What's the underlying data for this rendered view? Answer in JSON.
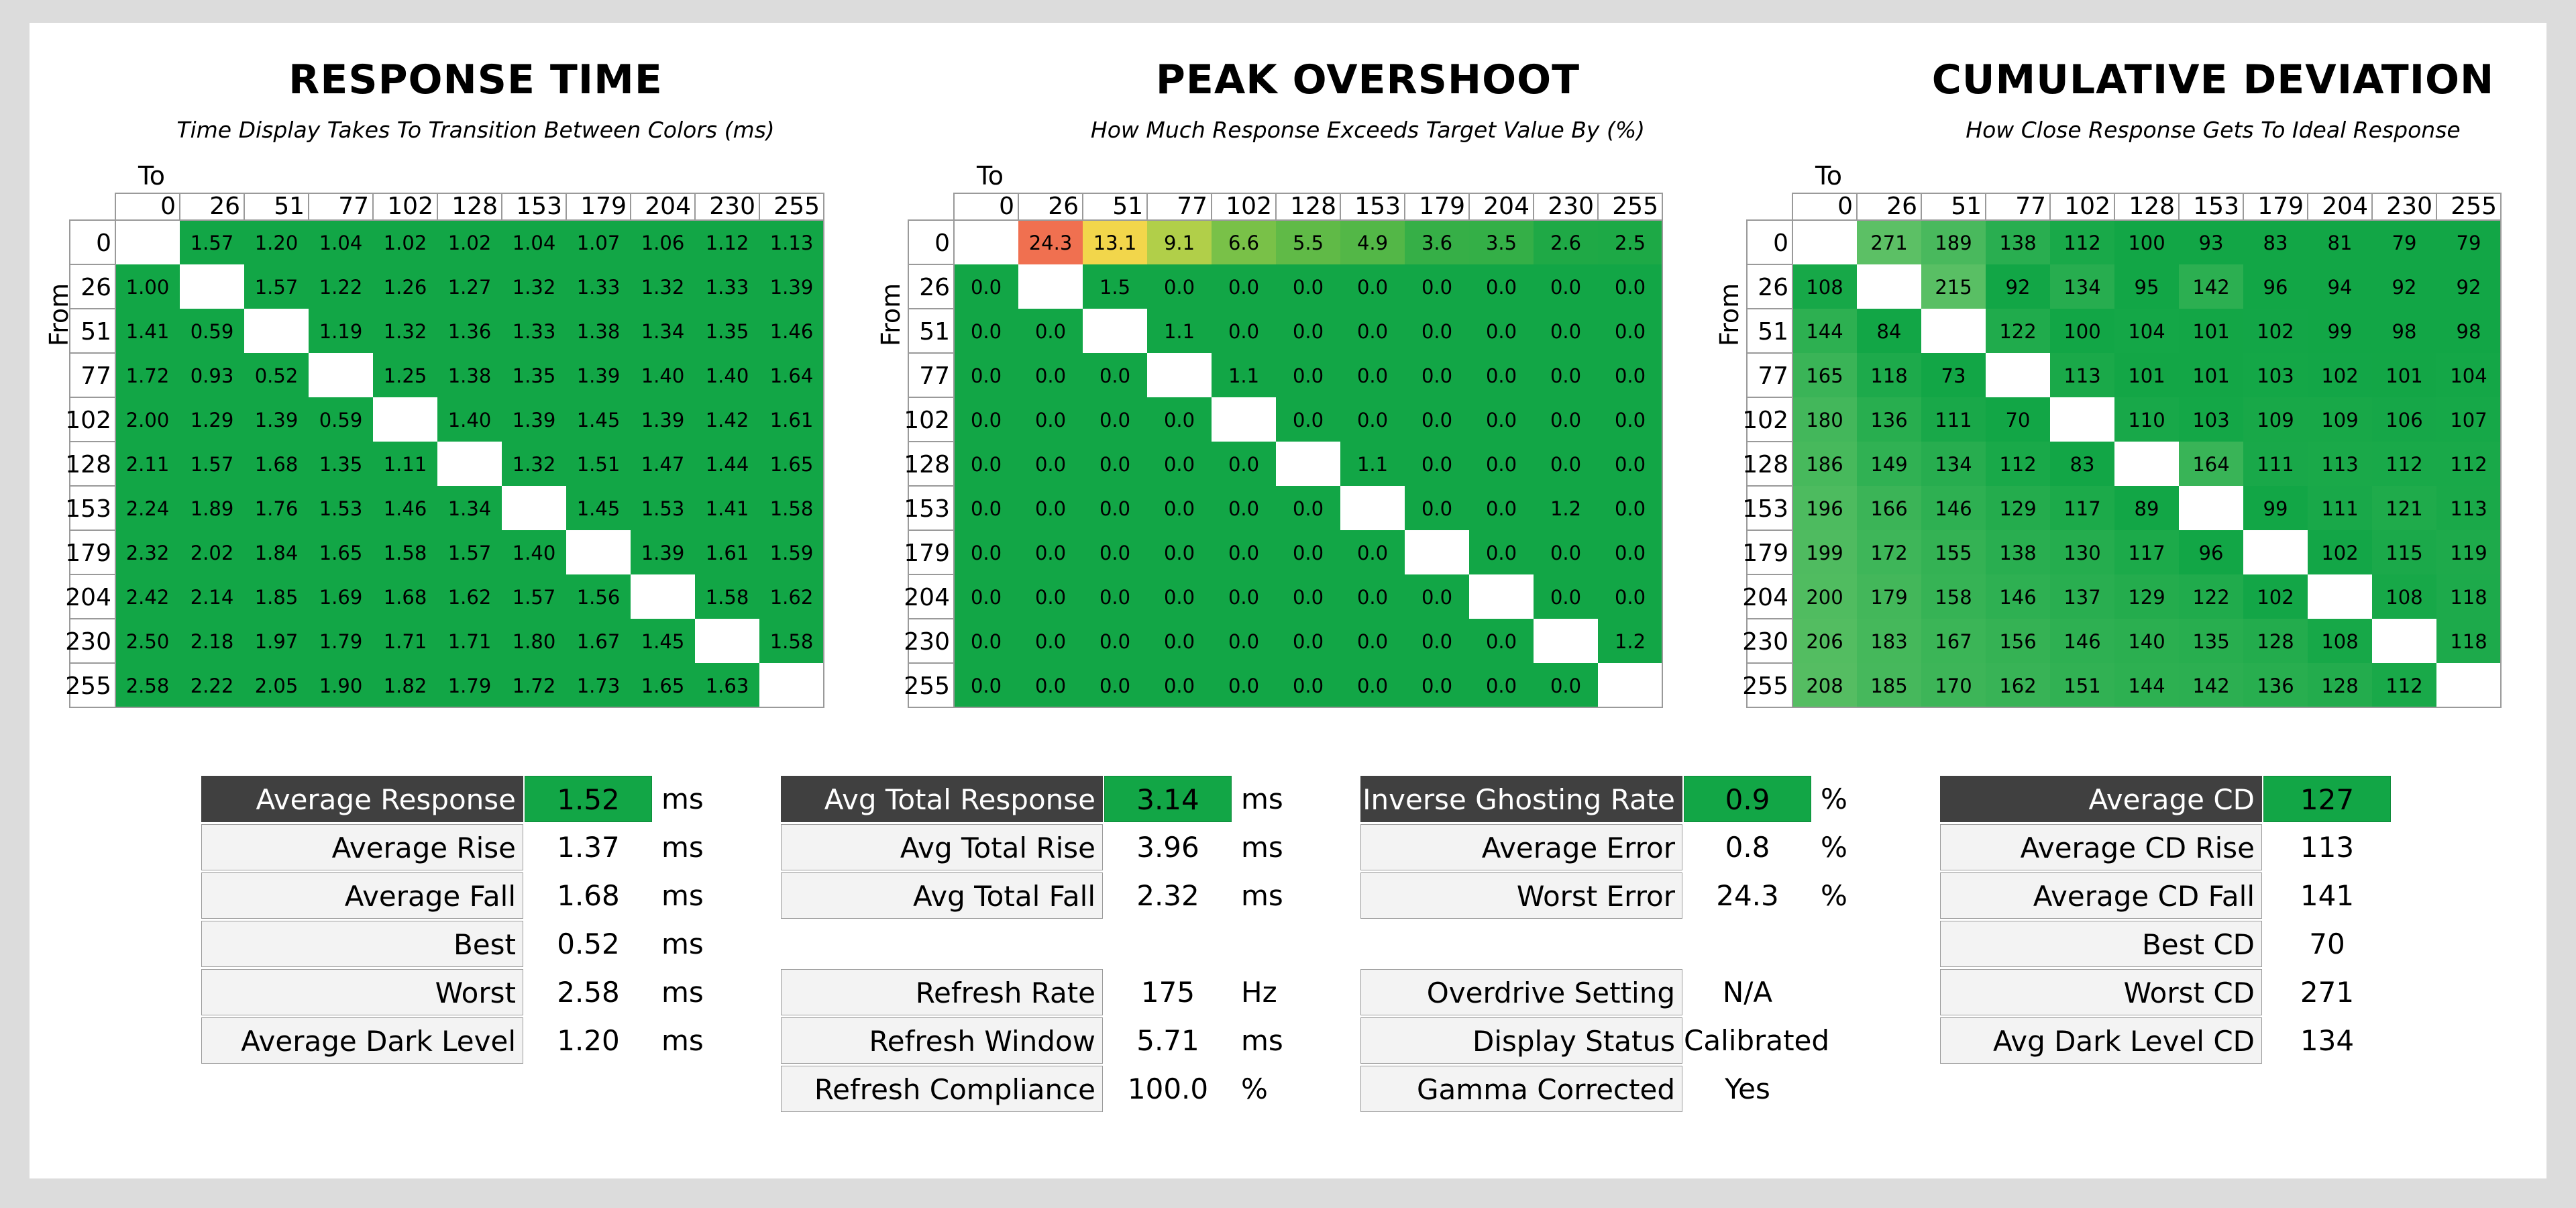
{
  "charts": [
    {
      "title": "RESPONSE TIME",
      "subtitle": "Time Display Takes To Transition Between Colors (ms)",
      "axis_to": "To",
      "axis_from": "From",
      "stats": [
        {
          "label": "Average Response",
          "value": "1.52",
          "unit": "ms",
          "highlight": true
        },
        {
          "label": "Average Rise",
          "value": "1.37",
          "unit": "ms"
        },
        {
          "label": "Average Fall",
          "value": "1.68",
          "unit": "ms"
        },
        {
          "label": "Best",
          "value": "0.52",
          "unit": "ms"
        },
        {
          "label": "Worst",
          "value": "2.58",
          "unit": "ms"
        },
        {
          "label": "Average Dark Level",
          "value": "1.20",
          "unit": "ms"
        }
      ]
    },
    {
      "title": "PEAK OVERSHOOT",
      "subtitle": "How Much Response Exceeds Target Value By (%)",
      "axis_to": "To",
      "axis_from": "From",
      "stats": [
        {
          "label": "Avg Total Response",
          "value": "3.14",
          "unit": "ms",
          "highlight": true
        },
        {
          "label": "Avg Total Rise",
          "value": "3.96",
          "unit": "ms"
        },
        {
          "label": "Avg Total Fall",
          "value": "2.32",
          "unit": "ms"
        },
        {
          "gap": true
        },
        {
          "label": "Refresh Rate",
          "value": "175",
          "unit": "Hz"
        },
        {
          "label": "Refresh Window",
          "value": "5.71",
          "unit": "ms"
        },
        {
          "label": "Refresh Compliance",
          "value": "100.0",
          "unit": "%"
        }
      ]
    },
    {
      "title": "CUMULATIVE DEVIATION",
      "subtitle": "How Close Response Gets To Ideal Response",
      "axis_to": "To",
      "axis_from": "From",
      "stats": [
        {
          "label": "Inverse Ghosting Rate",
          "value": "0.9",
          "unit": "%",
          "highlight": true
        },
        {
          "label": "Average Error",
          "value": "0.8",
          "unit": "%"
        },
        {
          "label": "Worst Error",
          "value": "24.3",
          "unit": "%"
        },
        {
          "gap": true
        },
        {
          "label": "Overdrive Setting",
          "value": "N/A",
          "unit": ""
        },
        {
          "label": "Display Status",
          "value": "Calibrated",
          "unit": ""
        },
        {
          "label": "Gamma Corrected",
          "value": "Yes",
          "unit": ""
        }
      ]
    }
  ],
  "cd_stats": [
    {
      "label": "Average CD",
      "value": "127",
      "unit": "",
      "highlight": true
    },
    {
      "label": "Average CD Rise",
      "value": "113",
      "unit": ""
    },
    {
      "label": "Average CD Fall",
      "value": "141",
      "unit": ""
    },
    {
      "label": "Best CD",
      "value": "70",
      "unit": ""
    },
    {
      "label": "Worst CD",
      "value": "271",
      "unit": ""
    },
    {
      "label": "Avg Dark Level CD",
      "value": "134",
      "unit": ""
    }
  ],
  "colors": {
    "green": "#12a646",
    "heat_mid": "#f2e04a",
    "heat_high": "#f07050",
    "header_dark": "#404040"
  },
  "chart_data": [
    {
      "type": "heatmap",
      "title": "RESPONSE TIME",
      "xlabel": "To",
      "ylabel": "From",
      "x": [
        "0",
        "26",
        "51",
        "77",
        "102",
        "128",
        "153",
        "179",
        "204",
        "230",
        "255"
      ],
      "y": [
        "0",
        "26",
        "51",
        "77",
        "102",
        "128",
        "153",
        "179",
        "204",
        "230",
        "255"
      ],
      "values": [
        [
          null,
          "1.57",
          "1.20",
          "1.04",
          "1.02",
          "1.02",
          "1.04",
          "1.07",
          "1.06",
          "1.12",
          "1.13"
        ],
        [
          "1.00",
          null,
          "1.57",
          "1.22",
          "1.26",
          "1.27",
          "1.32",
          "1.33",
          "1.32",
          "1.33",
          "1.39"
        ],
        [
          "1.41",
          "0.59",
          null,
          "1.19",
          "1.32",
          "1.36",
          "1.33",
          "1.38",
          "1.34",
          "1.35",
          "1.46"
        ],
        [
          "1.72",
          "0.93",
          "0.52",
          null,
          "1.25",
          "1.38",
          "1.35",
          "1.39",
          "1.40",
          "1.40",
          "1.64"
        ],
        [
          "2.00",
          "1.29",
          "1.39",
          "0.59",
          null,
          "1.40",
          "1.39",
          "1.45",
          "1.39",
          "1.42",
          "1.61"
        ],
        [
          "2.11",
          "1.57",
          "1.68",
          "1.35",
          "1.11",
          null,
          "1.32",
          "1.51",
          "1.47",
          "1.44",
          "1.65"
        ],
        [
          "2.24",
          "1.89",
          "1.76",
          "1.53",
          "1.46",
          "1.34",
          null,
          "1.45",
          "1.53",
          "1.41",
          "1.58"
        ],
        [
          "2.32",
          "2.02",
          "1.84",
          "1.65",
          "1.58",
          "1.57",
          "1.40",
          null,
          "1.39",
          "1.61",
          "1.59"
        ],
        [
          "2.42",
          "2.14",
          "1.85",
          "1.69",
          "1.68",
          "1.62",
          "1.57",
          "1.56",
          null,
          "1.58",
          "1.62"
        ],
        [
          "2.50",
          "2.18",
          "1.97",
          "1.79",
          "1.71",
          "1.71",
          "1.80",
          "1.67",
          "1.45",
          null,
          "1.58"
        ],
        [
          "2.58",
          "2.22",
          "2.05",
          "1.90",
          "1.82",
          "1.79",
          "1.72",
          "1.73",
          "1.65",
          "1.63",
          null
        ]
      ]
    },
    {
      "type": "heatmap",
      "title": "PEAK OVERSHOOT",
      "xlabel": "To",
      "ylabel": "From",
      "x": [
        "0",
        "26",
        "51",
        "77",
        "102",
        "128",
        "153",
        "179",
        "204",
        "230",
        "255"
      ],
      "y": [
        "0",
        "26",
        "51",
        "77",
        "102",
        "128",
        "153",
        "179",
        "204",
        "230",
        "255"
      ],
      "values": [
        [
          null,
          "24.3",
          "13.1",
          "9.1",
          "6.6",
          "5.5",
          "4.9",
          "3.6",
          "3.5",
          "2.6",
          "2.5"
        ],
        [
          "0.0",
          null,
          "1.5",
          "0.0",
          "0.0",
          "0.0",
          "0.0",
          "0.0",
          "0.0",
          "0.0",
          "0.0"
        ],
        [
          "0.0",
          "0.0",
          null,
          "1.1",
          "0.0",
          "0.0",
          "0.0",
          "0.0",
          "0.0",
          "0.0",
          "0.0"
        ],
        [
          "0.0",
          "0.0",
          "0.0",
          null,
          "1.1",
          "0.0",
          "0.0",
          "0.0",
          "0.0",
          "0.0",
          "0.0"
        ],
        [
          "0.0",
          "0.0",
          "0.0",
          "0.0",
          null,
          "0.0",
          "0.0",
          "0.0",
          "0.0",
          "0.0",
          "0.0"
        ],
        [
          "0.0",
          "0.0",
          "0.0",
          "0.0",
          "0.0",
          null,
          "1.1",
          "0.0",
          "0.0",
          "0.0",
          "0.0"
        ],
        [
          "0.0",
          "0.0",
          "0.0",
          "0.0",
          "0.0",
          "0.0",
          null,
          "0.0",
          "0.0",
          "1.2",
          "0.0"
        ],
        [
          "0.0",
          "0.0",
          "0.0",
          "0.0",
          "0.0",
          "0.0",
          "0.0",
          null,
          "0.0",
          "0.0",
          "0.0"
        ],
        [
          "0.0",
          "0.0",
          "0.0",
          "0.0",
          "0.0",
          "0.0",
          "0.0",
          "0.0",
          null,
          "0.0",
          "0.0"
        ],
        [
          "0.0",
          "0.0",
          "0.0",
          "0.0",
          "0.0",
          "0.0",
          "0.0",
          "0.0",
          "0.0",
          null,
          "1.2"
        ],
        [
          "0.0",
          "0.0",
          "0.0",
          "0.0",
          "0.0",
          "0.0",
          "0.0",
          "0.0",
          "0.0",
          "0.0",
          null
        ]
      ]
    },
    {
      "type": "heatmap",
      "title": "CUMULATIVE DEVIATION",
      "xlabel": "To",
      "ylabel": "From",
      "x": [
        "0",
        "26",
        "51",
        "77",
        "102",
        "128",
        "153",
        "179",
        "204",
        "230",
        "255"
      ],
      "y": [
        "0",
        "26",
        "51",
        "77",
        "102",
        "128",
        "153",
        "179",
        "204",
        "230",
        "255"
      ],
      "values": [
        [
          null,
          "271",
          "189",
          "138",
          "112",
          "100",
          "93",
          "83",
          "81",
          "79",
          "79"
        ],
        [
          "108",
          null,
          "215",
          "92",
          "134",
          "95",
          "142",
          "96",
          "94",
          "92",
          "92"
        ],
        [
          "144",
          "84",
          null,
          "122",
          "100",
          "104",
          "101",
          "102",
          "99",
          "98",
          "98"
        ],
        [
          "165",
          "118",
          "73",
          null,
          "113",
          "101",
          "101",
          "103",
          "102",
          "101",
          "104"
        ],
        [
          "180",
          "136",
          "111",
          "70",
          null,
          "110",
          "103",
          "109",
          "109",
          "106",
          "107"
        ],
        [
          "186",
          "149",
          "134",
          "112",
          "83",
          null,
          "164",
          "111",
          "113",
          "112",
          "112"
        ],
        [
          "196",
          "166",
          "146",
          "129",
          "117",
          "89",
          null,
          "99",
          "111",
          "121",
          "113"
        ],
        [
          "199",
          "172",
          "155",
          "138",
          "130",
          "117",
          "96",
          null,
          "102",
          "115",
          "119"
        ],
        [
          "200",
          "179",
          "158",
          "146",
          "137",
          "129",
          "122",
          "102",
          null,
          "108",
          "118"
        ],
        [
          "206",
          "183",
          "167",
          "156",
          "146",
          "140",
          "135",
          "128",
          "108",
          null,
          "118"
        ],
        [
          "208",
          "185",
          "170",
          "162",
          "151",
          "144",
          "142",
          "136",
          "128",
          "112",
          null
        ]
      ]
    }
  ]
}
